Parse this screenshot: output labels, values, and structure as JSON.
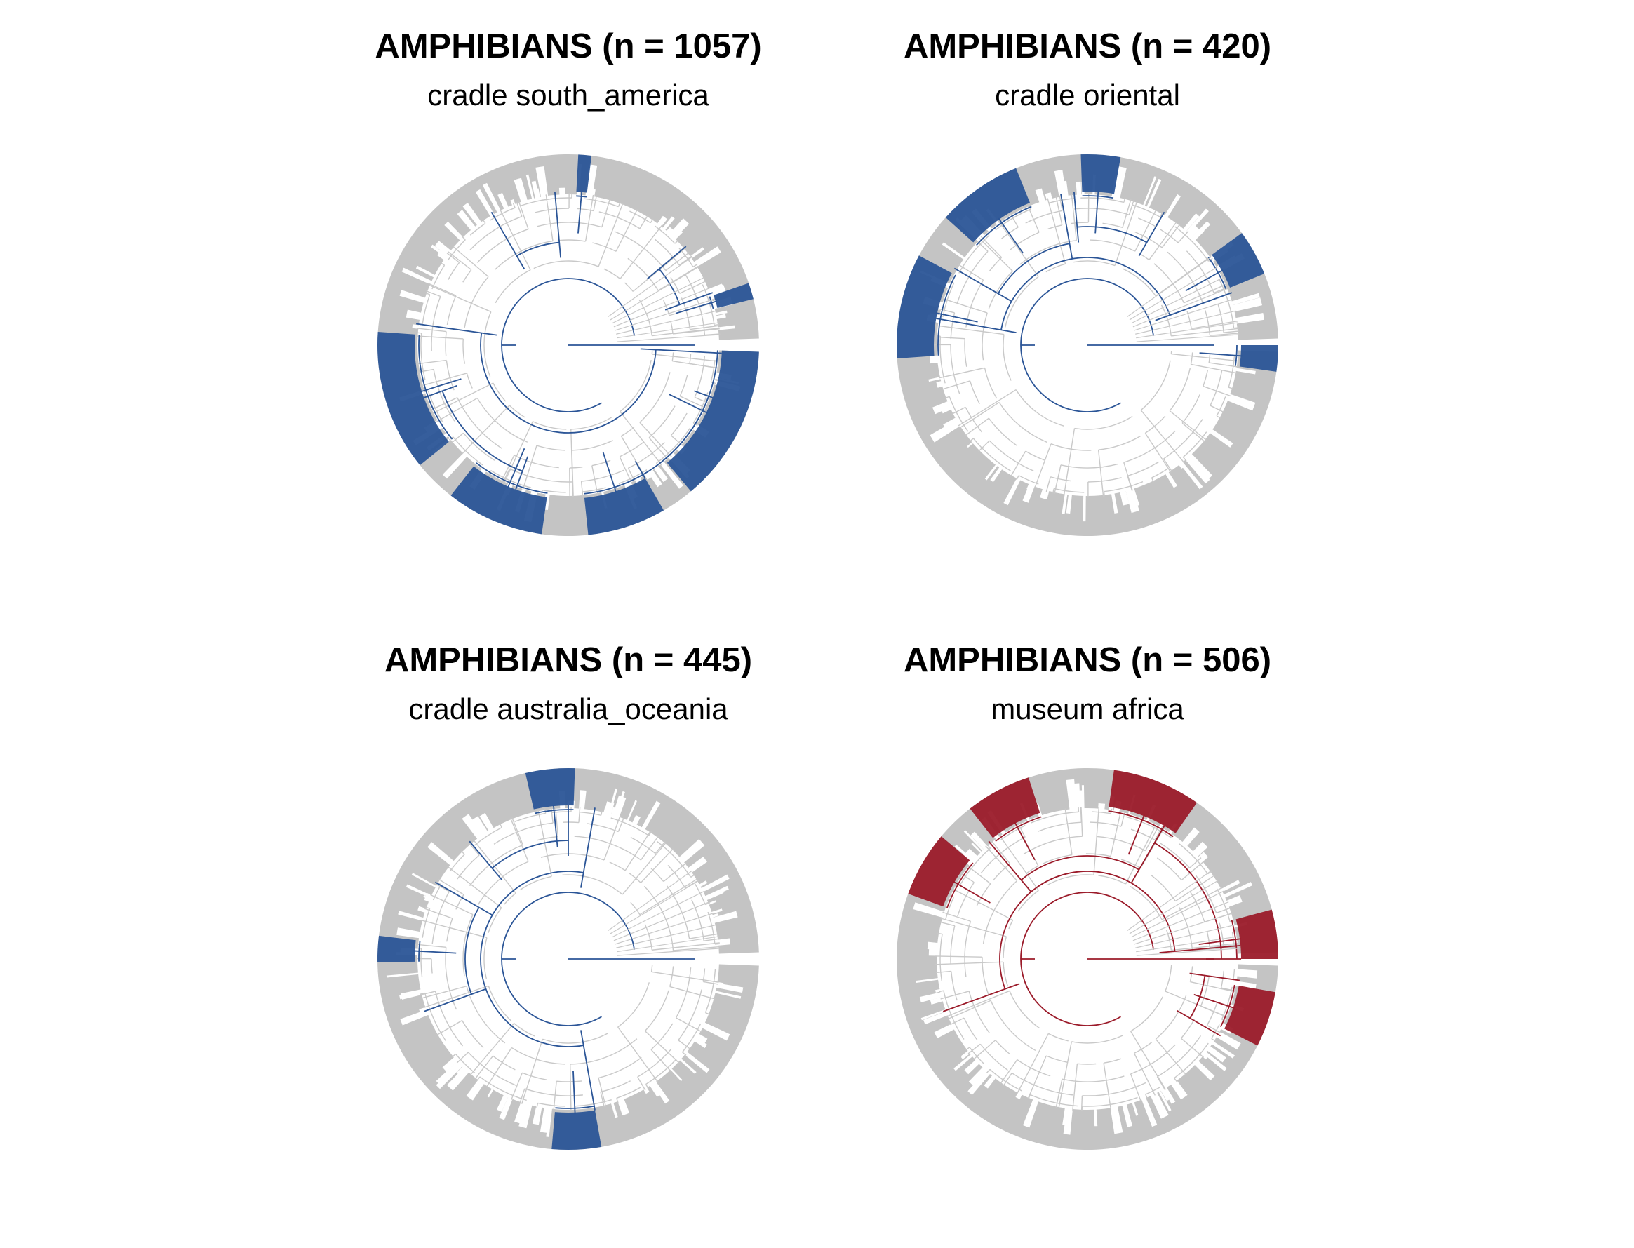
{
  "colors": {
    "background": "#ffffff",
    "tip_fill": "#c4c4c4",
    "branch_gray": "#c9c9c9",
    "cradle": "#2b5597",
    "museum": "#9b1b2a"
  },
  "panels": [
    {
      "title": "AMPHIBIANS (n = 1057)",
      "subtitle": "cradle south_america",
      "highlight": "cradle",
      "tip_wedges": [
        [
          176,
          219
        ],
        [
          232,
          262
        ],
        [
          276,
          300
        ],
        [
          310,
          358
        ],
        [
          83,
          87
        ],
        [
          14,
          19
        ]
      ],
      "branch_arcs": [
        [
          172,
          357
        ],
        [
          95,
          120
        ],
        [
          20,
          40
        ],
        [
          200,
          250
        ],
        [
          300,
          340
        ]
      ]
    },
    {
      "title": "AMPHIBIANS (n = 420)",
      "subtitle": "cradle oriental",
      "highlight": "cradle",
      "tip_wedges": [
        [
          152,
          184
        ],
        [
          112,
          138
        ],
        [
          80,
          92
        ],
        [
          22,
          36
        ],
        [
          352,
          360
        ]
      ],
      "branch_arcs": [
        [
          20,
          170
        ],
        [
          100,
          150
        ],
        [
          60,
          95
        ]
      ]
    },
    {
      "title": "AMPHIBIANS (n = 445)",
      "subtitle": "cradle australia_oceania",
      "highlight": "cradle",
      "tip_wedges": [
        [
          88,
          103
        ],
        [
          173,
          181
        ],
        [
          265,
          280
        ]
      ],
      "branch_arcs": [
        [
          80,
          280
        ],
        [
          150,
          200
        ],
        [
          90,
          130
        ]
      ]
    },
    {
      "title": "AMPHIBIANS (n = 506)",
      "subtitle": "museum africa",
      "highlight": "museum",
      "tip_wedges": [
        [
          108,
          128
        ],
        [
          55,
          82
        ],
        [
          0,
          15
        ],
        [
          333,
          350
        ],
        [
          140,
          160
        ]
      ],
      "branch_arcs": [
        [
          5,
          200
        ],
        [
          60,
          130
        ],
        [
          330,
          352
        ],
        [
          0,
          60
        ]
      ]
    }
  ]
}
